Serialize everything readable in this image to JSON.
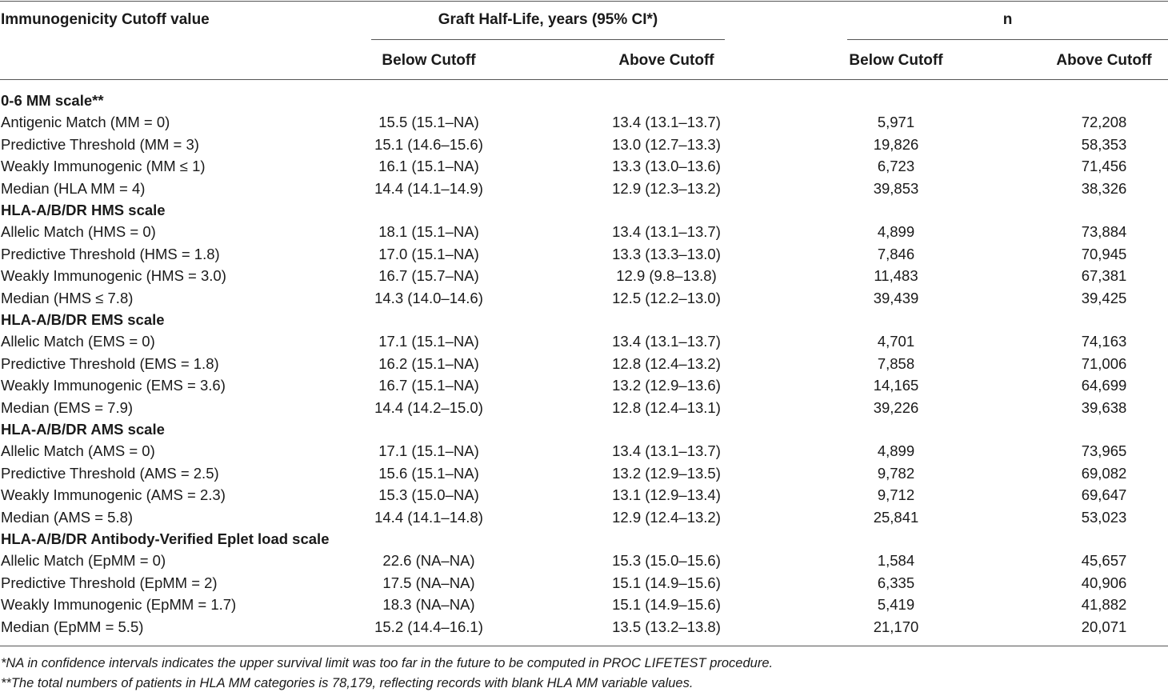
{
  "header": {
    "col0": "Immunogenicity Cutoff value",
    "group1": "Graft Half-Life, years (95% CI*)",
    "group2": "n",
    "below": "Below Cutoff",
    "above": "Above Cutoff"
  },
  "sections": [
    {
      "title": "0-6 MM scale**",
      "rows": [
        {
          "label": "Antigenic Match (MM = 0)",
          "hl_below": "15.5 (15.1–NA)",
          "hl_above": "13.4 (13.1–13.7)",
          "n_below": "5,971",
          "n_above": "72,208"
        },
        {
          "label": "Predictive Threshold (MM = 3)",
          "hl_below": "15.1 (14.6–15.6)",
          "hl_above": "13.0 (12.7–13.3)",
          "n_below": "19,826",
          "n_above": "58,353"
        },
        {
          "label": "Weakly Immunogenic (MM ≤ 1)",
          "hl_below": "16.1 (15.1–NA)",
          "hl_above": "13.3 (13.0–13.6)",
          "n_below": "6,723",
          "n_above": "71,456"
        },
        {
          "label": "Median (HLA MM = 4)",
          "hl_below": "14.4 (14.1–14.9)",
          "hl_above": "12.9 (12.3–13.2)",
          "n_below": "39,853",
          "n_above": "38,326"
        }
      ]
    },
    {
      "title": "HLA-A/B/DR HMS scale",
      "rows": [
        {
          "label": "Allelic Match (HMS = 0)",
          "hl_below": "18.1 (15.1–NA)",
          "hl_above": "13.4 (13.1–13.7)",
          "n_below": "4,899",
          "n_above": "73,884"
        },
        {
          "label": "Predictive Threshold (HMS = 1.8)",
          "hl_below": "17.0 (15.1–NA)",
          "hl_above": "13.3 (13.3–13.0)",
          "n_below": "7,846",
          "n_above": "70,945"
        },
        {
          "label": "Weakly Immunogenic (HMS = 3.0)",
          "hl_below": "16.7 (15.7–NA)",
          "hl_above": "12.9 (9.8–13.8)",
          "n_below": "11,483",
          "n_above": "67,381"
        },
        {
          "label": "Median (HMS ≤ 7.8)",
          "hl_below": "14.3 (14.0–14.6)",
          "hl_above": "12.5 (12.2–13.0)",
          "n_below": "39,439",
          "n_above": "39,425"
        }
      ]
    },
    {
      "title": "HLA-A/B/DR EMS scale",
      "rows": [
        {
          "label": "Allelic Match (EMS = 0)",
          "hl_below": "17.1 (15.1–NA)",
          "hl_above": "13.4 (13.1–13.7)",
          "n_below": "4,701",
          "n_above": "74,163"
        },
        {
          "label": "Predictive Threshold (EMS = 1.8)",
          "hl_below": "16.2 (15.1–NA)",
          "hl_above": "12.8 (12.4–13.2)",
          "n_below": "7,858",
          "n_above": "71,006"
        },
        {
          "label": "Weakly Immunogenic (EMS = 3.6)",
          "hl_below": "16.7 (15.1–NA)",
          "hl_above": "13.2 (12.9–13.6)",
          "n_below": "14,165",
          "n_above": "64,699"
        },
        {
          "label": "Median (EMS = 7.9)",
          "hl_below": "14.4 (14.2–15.0)",
          "hl_above": "12.8 (12.4–13.1)",
          "n_below": "39,226",
          "n_above": "39,638"
        }
      ]
    },
    {
      "title": "HLA-A/B/DR AMS scale",
      "rows": [
        {
          "label": "Allelic Match (AMS = 0)",
          "hl_below": "17.1 (15.1–NA)",
          "hl_above": "13.4 (13.1–13.7)",
          "n_below": "4,899",
          "n_above": "73,965"
        },
        {
          "label": "Predictive Threshold (AMS = 2.5)",
          "hl_below": "15.6 (15.1–NA)",
          "hl_above": "13.2 (12.9–13.5)",
          "n_below": "9,782",
          "n_above": "69,082"
        },
        {
          "label": "Weakly Immunogenic (AMS = 2.3)",
          "hl_below": "15.3 (15.0–NA)",
          "hl_above": "13.1 (12.9–13.4)",
          "n_below": "9,712",
          "n_above": "69,647"
        },
        {
          "label": "Median (AMS = 5.8)",
          "hl_below": "14.4 (14.1–14.8)",
          "hl_above": "12.9 (12.4–13.2)",
          "n_below": "25,841",
          "n_above": "53,023"
        }
      ]
    },
    {
      "title": "HLA-A/B/DR Antibody-Verified Eplet load scale",
      "rows": [
        {
          "label": "Allelic Match (EpMM = 0)",
          "hl_below": "22.6 (NA–NA)",
          "hl_above": "15.3 (15.0–15.6)",
          "n_below": "1,584",
          "n_above": "45,657"
        },
        {
          "label": "Predictive Threshold (EpMM = 2)",
          "hl_below": "17.5 (NA–NA)",
          "hl_above": "15.1 (14.9–15.6)",
          "n_below": "6,335",
          "n_above": "40,906"
        },
        {
          "label": "Weakly Immunogenic (EpMM = 1.7)",
          "hl_below": "18.3 (NA–NA)",
          "hl_above": "15.1 (14.9–15.6)",
          "n_below": "5,419",
          "n_above": "41,882"
        },
        {
          "label": "Median (EpMM = 5.5)",
          "hl_below": "15.2 (14.4–16.1)",
          "hl_above": "13.5 (13.2–13.8)",
          "n_below": "21,170",
          "n_above": "20,071"
        }
      ]
    }
  ],
  "footnotes": [
    "*NA in confidence intervals indicates the upper survival limit was too far in the future to be computed in PROC LIFETEST procedure.",
    "**The total numbers of patients in HLA MM categories is 78,179, reflecting records with blank HLA MM variable values."
  ]
}
